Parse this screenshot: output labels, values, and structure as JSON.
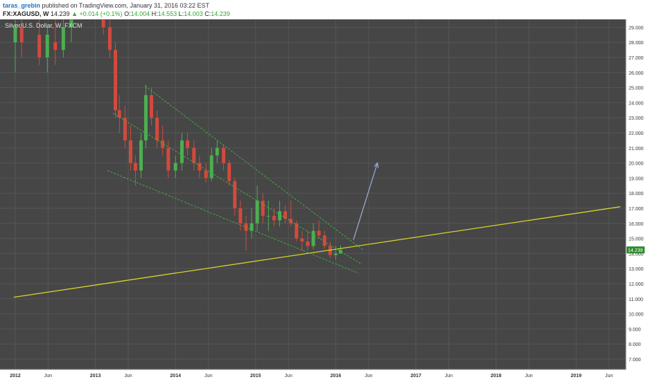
{
  "header": {
    "author": "taras_grebin",
    "published_text": "published on TradingView.com, January 31, 2016 03:22 EST",
    "symbol": "FX:XAGUSD, W",
    "last_price": "14.239",
    "change": "+0.014 (+0.1%)",
    "open_label": "O:",
    "open": "14.004",
    "high_label": "H:",
    "high": "14.553",
    "low_label": "L:",
    "low": "14.003",
    "close_label": "C:",
    "close": "14.239"
  },
  "colors": {
    "background": "#464646",
    "grid": "#555555",
    "up_candle": "#4caf50",
    "down_candle": "#d24a3c",
    "channel": "#3fae3f",
    "support": "#d6d62a",
    "arrow": "#9aa6d8",
    "price_badge": "#2e8b2e"
  },
  "chart_data": {
    "type": "candlestick",
    "title": "Silver/U.S. Dollar, W, FXCM",
    "ylim": [
      6.5,
      29.5
    ],
    "y_ticks": [
      "7.000",
      "8.000",
      "9.000",
      "10.000",
      "11.000",
      "12.000",
      "13.000",
      "14.000",
      "15.000",
      "16.000",
      "17.000",
      "18.000",
      "19.000",
      "20.000",
      "21.000",
      "22.000",
      "23.000",
      "24.000",
      "25.000",
      "26.000",
      "27.000",
      "28.000",
      "29.000"
    ],
    "x_ticks": [
      "2012",
      "Jun",
      "2013",
      "Jun",
      "2014",
      "Jun",
      "2015",
      "Jun",
      "2016",
      "Jun",
      "2017",
      "Jun",
      "2018",
      "Jun",
      "2019",
      "Jun"
    ],
    "current_price": "14.239",
    "series": [
      {
        "t": 2012.0,
        "o": 28.0,
        "h": 29.5,
        "l": 26.0,
        "c": 29.0
      },
      {
        "t": 2012.08,
        "o": 29.0,
        "h": 29.5,
        "l": 27.0,
        "c": 28.0
      },
      {
        "t": 2012.3,
        "o": 28.5,
        "h": 29.5,
        "l": 26.5,
        "c": 27.0
      },
      {
        "t": 2012.4,
        "o": 27.0,
        "h": 29.0,
        "l": 26.0,
        "c": 28.5
      },
      {
        "t": 2012.5,
        "o": 28.0,
        "h": 29.5,
        "l": 26.5,
        "c": 27.5
      },
      {
        "t": 2012.6,
        "o": 27.5,
        "h": 29.5,
        "l": 27.0,
        "c": 29.0
      },
      {
        "t": 2012.7,
        "o": 29.0,
        "h": 29.5,
        "l": 28.0,
        "c": 29.5
      },
      {
        "t": 2013.1,
        "o": 29.5,
        "h": 29.5,
        "l": 28.5,
        "c": 29.0
      },
      {
        "t": 2013.18,
        "o": 29.0,
        "h": 29.5,
        "l": 27.0,
        "c": 27.5
      },
      {
        "t": 2013.25,
        "o": 27.5,
        "h": 28.0,
        "l": 23.0,
        "c": 23.5
      },
      {
        "t": 2013.3,
        "o": 23.5,
        "h": 24.5,
        "l": 22.0,
        "c": 23.0
      },
      {
        "t": 2013.37,
        "o": 23.0,
        "h": 23.8,
        "l": 21.0,
        "c": 21.5
      },
      {
        "t": 2013.44,
        "o": 21.5,
        "h": 22.5,
        "l": 19.5,
        "c": 20.0
      },
      {
        "t": 2013.5,
        "o": 20.0,
        "h": 20.5,
        "l": 18.5,
        "c": 19.5
      },
      {
        "t": 2013.57,
        "o": 19.5,
        "h": 22.0,
        "l": 19.0,
        "c": 21.5
      },
      {
        "t": 2013.63,
        "o": 21.5,
        "h": 25.2,
        "l": 21.0,
        "c": 24.5
      },
      {
        "t": 2013.7,
        "o": 24.5,
        "h": 25.0,
        "l": 22.5,
        "c": 23.0
      },
      {
        "t": 2013.77,
        "o": 23.0,
        "h": 23.5,
        "l": 21.0,
        "c": 21.5
      },
      {
        "t": 2013.84,
        "o": 21.5,
        "h": 22.5,
        "l": 20.5,
        "c": 21.0
      },
      {
        "t": 2013.91,
        "o": 21.0,
        "h": 21.5,
        "l": 19.0,
        "c": 19.5
      },
      {
        "t": 2014.0,
        "o": 19.5,
        "h": 20.5,
        "l": 19.0,
        "c": 20.0
      },
      {
        "t": 2014.08,
        "o": 20.0,
        "h": 22.0,
        "l": 19.5,
        "c": 21.5
      },
      {
        "t": 2014.15,
        "o": 21.5,
        "h": 22.0,
        "l": 20.5,
        "c": 21.0
      },
      {
        "t": 2014.23,
        "o": 21.0,
        "h": 21.5,
        "l": 19.5,
        "c": 20.0
      },
      {
        "t": 2014.3,
        "o": 20.0,
        "h": 20.5,
        "l": 19.0,
        "c": 19.5
      },
      {
        "t": 2014.38,
        "o": 19.5,
        "h": 20.0,
        "l": 18.7,
        "c": 19.0
      },
      {
        "t": 2014.45,
        "o": 19.0,
        "h": 21.0,
        "l": 18.8,
        "c": 20.5
      },
      {
        "t": 2014.52,
        "o": 20.5,
        "h": 21.5,
        "l": 20.0,
        "c": 21.0
      },
      {
        "t": 2014.6,
        "o": 21.0,
        "h": 21.2,
        "l": 19.5,
        "c": 20.0
      },
      {
        "t": 2014.67,
        "o": 20.0,
        "h": 20.2,
        "l": 18.5,
        "c": 18.8
      },
      {
        "t": 2014.74,
        "o": 18.8,
        "h": 19.0,
        "l": 16.5,
        "c": 17.0
      },
      {
        "t": 2014.81,
        "o": 17.0,
        "h": 17.5,
        "l": 15.5,
        "c": 16.0
      },
      {
        "t": 2014.88,
        "o": 16.0,
        "h": 16.5,
        "l": 14.2,
        "c": 15.5
      },
      {
        "t": 2014.95,
        "o": 15.5,
        "h": 17.0,
        "l": 15.0,
        "c": 16.0
      },
      {
        "t": 2015.02,
        "o": 16.0,
        "h": 18.5,
        "l": 15.5,
        "c": 17.5
      },
      {
        "t": 2015.09,
        "o": 17.5,
        "h": 18.0,
        "l": 16.0,
        "c": 16.5
      },
      {
        "t": 2015.16,
        "o": 16.5,
        "h": 17.5,
        "l": 15.5,
        "c": 16.5
      },
      {
        "t": 2015.23,
        "o": 16.5,
        "h": 17.0,
        "l": 15.8,
        "c": 16.2
      },
      {
        "t": 2015.3,
        "o": 16.2,
        "h": 17.5,
        "l": 15.8,
        "c": 16.8
      },
      {
        "t": 2015.37,
        "o": 16.8,
        "h": 17.2,
        "l": 16.0,
        "c": 16.3
      },
      {
        "t": 2015.44,
        "o": 16.3,
        "h": 17.5,
        "l": 15.8,
        "c": 16.0
      },
      {
        "t": 2015.51,
        "o": 16.0,
        "h": 16.2,
        "l": 14.8,
        "c": 15.0
      },
      {
        "t": 2015.58,
        "o": 15.0,
        "h": 15.5,
        "l": 14.2,
        "c": 14.8
      },
      {
        "t": 2015.65,
        "o": 14.8,
        "h": 15.5,
        "l": 14.2,
        "c": 14.5
      },
      {
        "t": 2015.72,
        "o": 14.5,
        "h": 16.0,
        "l": 14.3,
        "c": 15.5
      },
      {
        "t": 2015.79,
        "o": 15.5,
        "h": 16.2,
        "l": 15.0,
        "c": 15.2
      },
      {
        "t": 2015.86,
        "o": 15.2,
        "h": 15.5,
        "l": 14.3,
        "c": 14.5
      },
      {
        "t": 2015.93,
        "o": 14.5,
        "h": 14.8,
        "l": 13.7,
        "c": 13.9
      },
      {
        "t": 2016.0,
        "o": 13.9,
        "h": 14.5,
        "l": 13.6,
        "c": 14.0
      },
      {
        "t": 2016.06,
        "o": 14.0,
        "h": 14.55,
        "l": 14.0,
        "c": 14.24
      }
    ],
    "annotations": {
      "support_line": [
        [
          2011.98,
          11.1
        ],
        [
          2019.55,
          17.1
        ]
      ],
      "channel_upper": [
        [
          2013.62,
          25.1
        ],
        [
          2016.35,
          14.2
        ]
      ],
      "channel_lower": [
        [
          2013.15,
          19.5
        ],
        [
          2016.28,
          12.7
        ]
      ],
      "channel_mid": [
        [
          2013.22,
          23.3
        ],
        [
          2016.32,
          13.3
        ]
      ],
      "forecast_arrow": [
        [
          2016.22,
          14.9
        ],
        [
          2016.52,
          20.0
        ]
      ]
    }
  }
}
